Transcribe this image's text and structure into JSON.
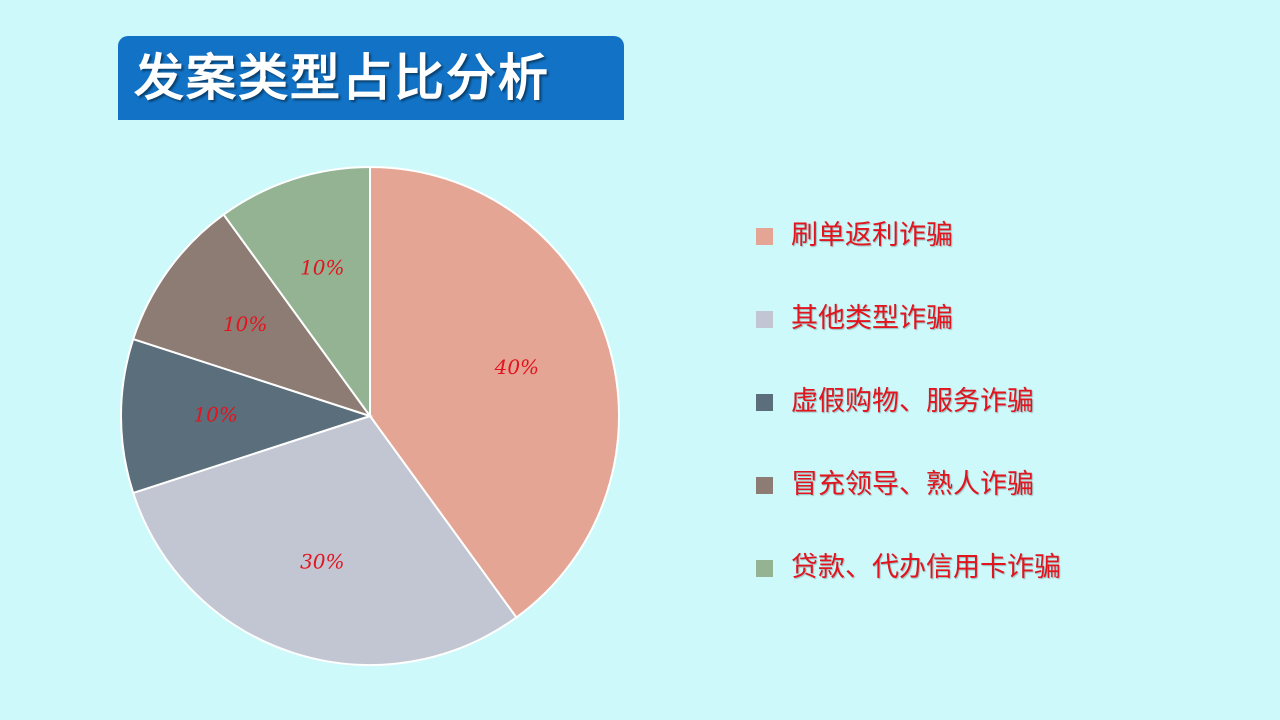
{
  "header": {
    "title": "发案类型占比分析"
  },
  "chart_data": {
    "type": "pie",
    "title": "发案类型占比分析",
    "unit": "%",
    "categories": [
      "刷单返利诈骗",
      "其他类型诈骗",
      "虚假购物、服务诈骗",
      "冒充领导、熟人诈骗",
      "贷款、代办信用卡诈骗"
    ],
    "values": [
      40,
      30,
      10,
      10,
      10
    ],
    "data_labels": [
      "40%",
      "30%",
      "10%",
      "10%",
      "10%"
    ],
    "colors": [
      "#e4a594",
      "#c2c6d2",
      "#5a6e7b",
      "#8d7c73",
      "#93b393"
    ],
    "label_color": "#e2141e",
    "start_angle_deg": 0,
    "direction": "clockwise",
    "legend_position": "right"
  }
}
